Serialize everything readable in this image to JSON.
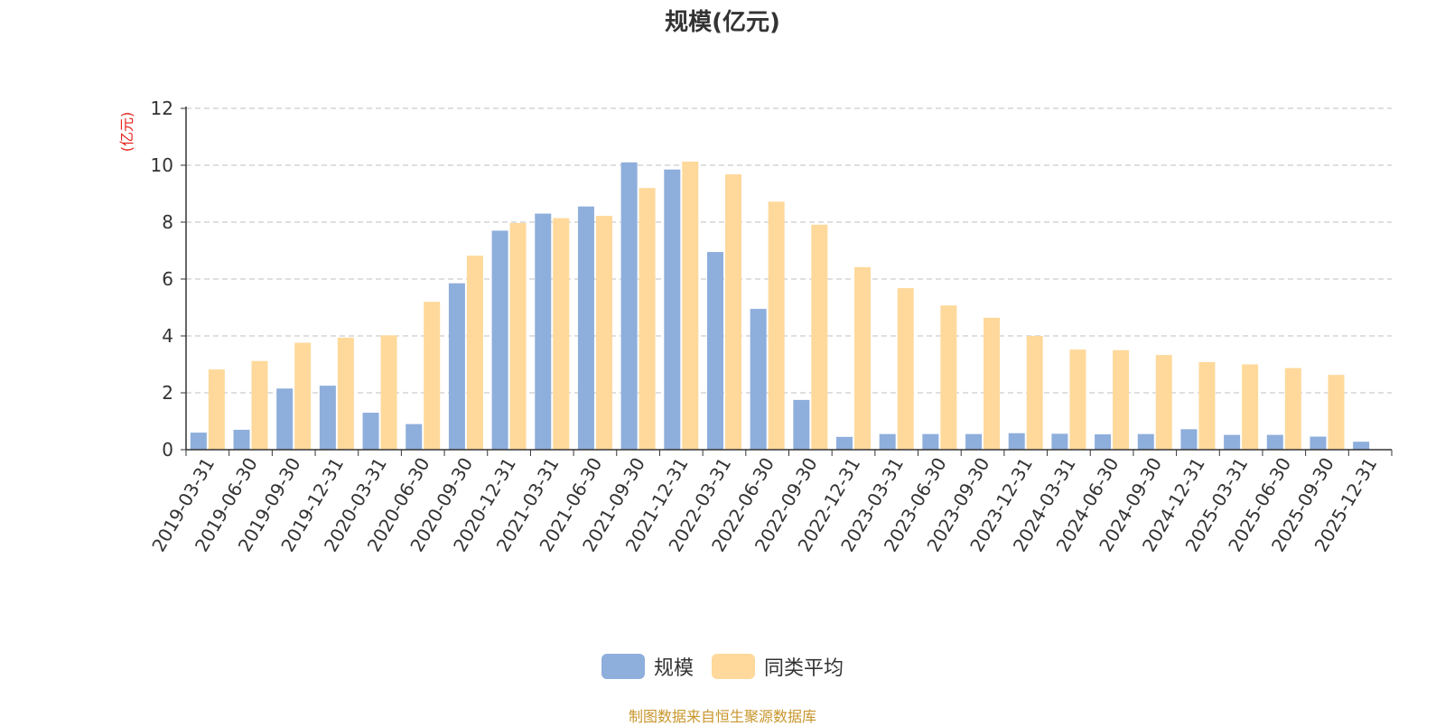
{
  "title": "规模(亿元)",
  "source_note": "制图数据来自恒生聚源数据库",
  "colors": {
    "series_1": "#8eaedc",
    "series_2": "#fed99b",
    "axis": "#333333",
    "grid": "#cccccc",
    "ylabel": "#e8211d",
    "source": "#c8962c"
  },
  "legend": {
    "item_1": "规模",
    "item_2": "同类平均"
  },
  "chart_data": {
    "type": "bar",
    "title": "规模(亿元)",
    "ylabel": "(亿元)",
    "xlabel": "",
    "ylim": [
      0,
      12
    ],
    "yticks": [
      0,
      2,
      4,
      6,
      8,
      10,
      12
    ],
    "grid": true,
    "legend_position": "bottom",
    "categories": [
      "2019-03-31",
      "2019-06-30",
      "2019-09-30",
      "2019-12-31",
      "2020-03-31",
      "2020-06-30",
      "2020-09-30",
      "2020-12-31",
      "2021-03-31",
      "2021-06-30",
      "2021-09-30",
      "2021-12-31",
      "2022-03-31",
      "2022-06-30",
      "2022-09-30",
      "2022-12-31",
      "2023-03-31",
      "2023-06-30",
      "2023-09-30",
      "2023-12-31",
      "2024-03-31",
      "2024-06-30",
      "2024-09-30",
      "2024-12-31",
      "2025-03-31",
      "2025-06-30",
      "2025-09-30",
      "2025-12-31"
    ],
    "series": [
      {
        "name": "规模",
        "values": [
          0.6,
          0.7,
          2.15,
          2.25,
          1.3,
          0.9,
          5.85,
          7.7,
          8.3,
          8.55,
          10.1,
          9.85,
          6.95,
          4.95,
          1.75,
          0.45,
          0.55,
          0.55,
          0.55,
          0.58,
          0.56,
          0.54,
          0.55,
          0.72,
          0.52,
          0.52,
          0.46,
          0.28
        ]
      },
      {
        "name": "同类平均",
        "values": [
          2.82,
          3.12,
          3.76,
          3.94,
          4.02,
          5.2,
          6.82,
          7.97,
          8.14,
          8.22,
          9.2,
          10.13,
          9.68,
          8.72,
          7.91,
          6.42,
          5.68,
          5.07,
          4.64,
          4.0,
          3.52,
          3.5,
          3.33,
          3.08,
          3.0,
          2.87,
          2.63,
          null
        ]
      }
    ]
  }
}
